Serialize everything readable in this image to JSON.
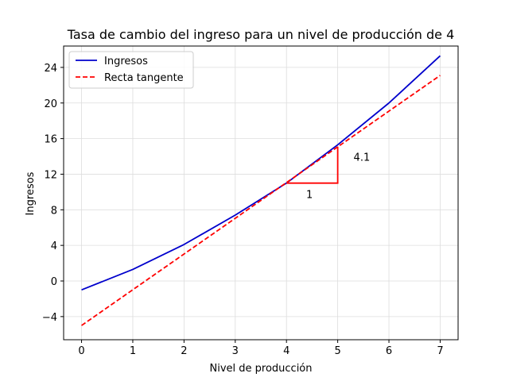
{
  "chart_data": {
    "type": "line",
    "title": "Tasa de cambio del ingreso para un nivel de producción de 4",
    "xlabel": "Nivel de producción",
    "ylabel": "Ingresos",
    "xlim": [
      -0.35,
      7.35
    ],
    "ylim": [
      -6.6,
      26.4
    ],
    "xticks": [
      0,
      1,
      2,
      3,
      4,
      5,
      6,
      7
    ],
    "yticks": [
      -4,
      0,
      4,
      8,
      12,
      16,
      20,
      24
    ],
    "x_tick_labels": [
      "0",
      "1",
      "2",
      "3",
      "4",
      "5",
      "6",
      "7"
    ],
    "y_tick_labels": [
      "−4",
      "0",
      "4",
      "8",
      "12",
      "16",
      "20",
      "24"
    ],
    "grid": true,
    "legend_position": "top-left",
    "series": [
      {
        "name": "Ingresos",
        "color": "#0000cc",
        "style": "solid",
        "x": [
          0,
          1,
          2,
          3,
          4,
          5,
          6,
          7
        ],
        "y": [
          -1,
          1.3,
          4.1,
          7.4,
          11.0,
          15.3,
          20.0,
          25.3
        ]
      },
      {
        "name": "Recta tangente",
        "color": "#ff0000",
        "style": "dashed",
        "x": [
          0,
          7
        ],
        "y": [
          -5.0,
          23.1
        ]
      }
    ],
    "annotations": {
      "triangle": {
        "color": "#ff0000",
        "x0": 4,
        "x1": 5,
        "y0": 11.0,
        "y1": 15.1
      },
      "run_label": {
        "text": "1",
        "x": 4.45,
        "y": 9.3
      },
      "rise_label": {
        "text": "4.1",
        "x": 5.47,
        "y": 13.5
      }
    }
  }
}
